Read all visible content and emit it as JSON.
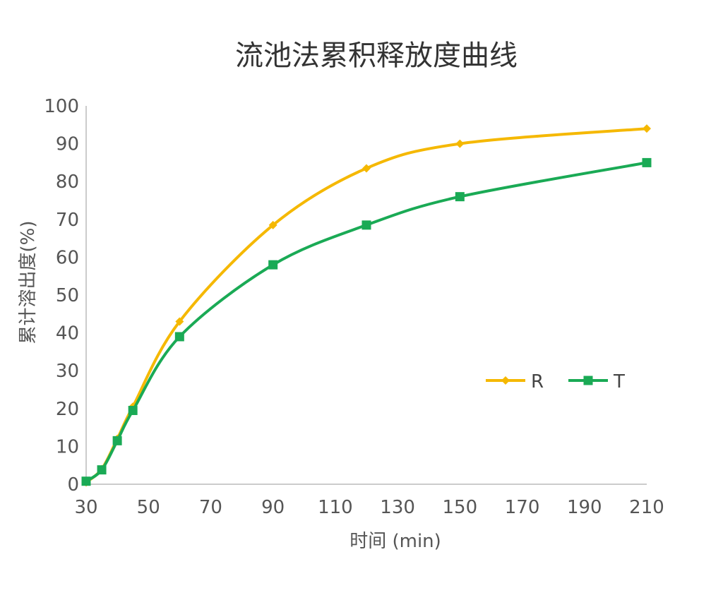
{
  "chart_data": {
    "type": "line",
    "title": "流池法累积释放度曲线",
    "xlabel": "时间 (min)",
    "ylabel": "累计溶出度(%)",
    "xlim": [
      30,
      210
    ],
    "ylim": [
      0,
      100
    ],
    "x_ticks": [
      "30",
      "50",
      "70",
      "90",
      "110",
      "130",
      "150",
      "170",
      "190",
      "210"
    ],
    "y_ticks": [
      "0",
      "10",
      "20",
      "30",
      "40",
      "50",
      "60",
      "70",
      "80",
      "90",
      "100"
    ],
    "grid": false,
    "legend": "right-center",
    "series": [
      {
        "name": "R",
        "color": "#F5B800",
        "marker": "diamond",
        "x": [
          30,
          35,
          40,
          45,
          60,
          90,
          120,
          150,
          210
        ],
        "y": [
          0.5,
          4,
          12,
          20.5,
          43,
          68.5,
          83.5,
          90,
          94
        ]
      },
      {
        "name": "T",
        "color": "#1AAA55",
        "marker": "square",
        "x": [
          30,
          35,
          40,
          45,
          60,
          90,
          120,
          150,
          210
        ],
        "y": [
          0.8,
          3.8,
          11.5,
          19.5,
          39,
          58,
          68.5,
          76,
          85
        ]
      }
    ]
  }
}
